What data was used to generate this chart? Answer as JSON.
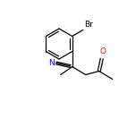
{
  "bg_color": "#ffffff",
  "bond_color": "#000000",
  "atom_colors": {
    "Br": "#000000",
    "O": "#ff0000",
    "N": "#0000ff",
    "C": "#000000"
  },
  "fig_size": [
    1.52,
    1.52
  ],
  "dpi": 100,
  "line_width": 0.9,
  "font_size": 6.5
}
